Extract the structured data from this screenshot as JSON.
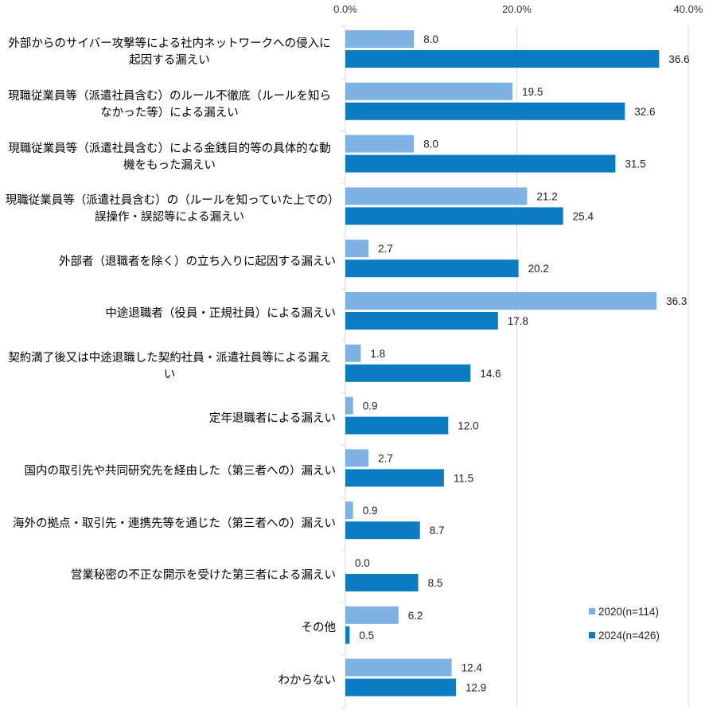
{
  "chart_data": {
    "type": "bar",
    "orientation": "horizontal",
    "categories": [
      "外部からのサイバー攻撃等による社内ネットワークへの侵入に起因する漏えい",
      "現職従業員等（派遣社員含む）のルール不徹底（ルールを知らなかった等）による漏えい",
      "現職従業員等（派遣社員含む）による金銭目的等の具体的な動機をもった漏えい",
      "現職従業員等（派遣社員含む）の（ルールを知っていた上での）誤操作・誤認等による漏えい",
      "外部者（退職者を除く）の立ち入りに起因する漏えい",
      "中途退職者（役員・正規社員）による漏えい",
      "契約満了後又は中途退職した契約社員・派遣社員等による漏えい",
      "定年退職者による漏えい",
      "国内の取引先や共同研究先を経由した（第三者への）漏えい",
      "海外の拠点・取引先・連携先等を通じた（第三者への）漏えい",
      "営業秘密の不正な開示を受けた第三者による漏えい",
      "その他",
      "わからない"
    ],
    "series": [
      {
        "name": "2020(n=114)",
        "color": "#7fb2e2",
        "values": [
          8.0,
          19.5,
          8.0,
          21.2,
          2.7,
          36.3,
          1.8,
          0.9,
          2.7,
          0.9,
          0.0,
          6.2,
          12.4
        ],
        "labels": [
          "8.0",
          "19.5",
          "8.0",
          "21.2",
          "2.7",
          "36.3",
          "1.8",
          "0.9",
          "2.7",
          "0.9",
          "0.0",
          "6.2",
          "12.4"
        ]
      },
      {
        "name": "2024(n=426)",
        "color": "#0b7cc1",
        "values": [
          36.6,
          32.6,
          31.5,
          25.4,
          20.2,
          17.8,
          14.6,
          12.0,
          11.5,
          8.7,
          8.5,
          0.5,
          12.9
        ],
        "labels": [
          "36.6",
          "32.6",
          "31.5",
          "25.4",
          "20.2",
          "17.8",
          "14.6",
          "12.0",
          "11.5",
          "8.7",
          "8.5",
          "0.5",
          "12.9"
        ]
      }
    ],
    "xlim": [
      0,
      40
    ],
    "xticks": [
      0,
      20,
      40
    ],
    "xtick_labels": [
      "0.0%",
      "20.0%",
      "40.0%"
    ],
    "xaxis_position": "top",
    "grid": true,
    "legend_position": "bottom-right"
  }
}
